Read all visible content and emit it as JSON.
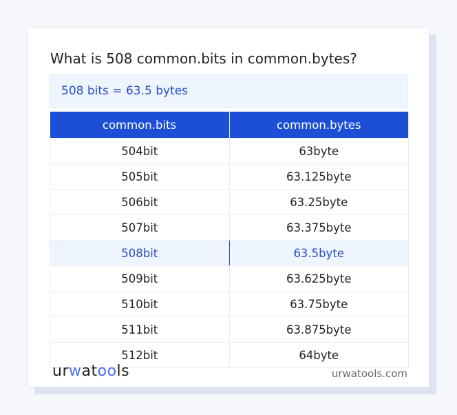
{
  "title": "What is 508 common.bits in common.bytes?",
  "result": "508 bits = 63.5 bytes",
  "table": {
    "headers": [
      "common.bits",
      "common.bytes"
    ],
    "rows": [
      [
        "504bit",
        "63byte"
      ],
      [
        "505bit",
        "63.125byte"
      ],
      [
        "506bit",
        "63.25byte"
      ],
      [
        "507bit",
        "63.375byte"
      ],
      [
        "508bit",
        "63.5byte"
      ],
      [
        "509bit",
        "63.625byte"
      ],
      [
        "510bit",
        "63.75byte"
      ],
      [
        "511bit",
        "63.875byte"
      ],
      [
        "512bit",
        "64byte"
      ]
    ],
    "highlighted_row": 4
  },
  "footer": {
    "logo": "urwatools",
    "logo_parts": [
      "ur",
      "w",
      "at",
      "oo",
      "ls"
    ],
    "site": "urwatools.com"
  },
  "colors": {
    "accent": "#1c4fd6",
    "highlight_bg": "#eef5fe",
    "highlight_text": "#2a4fc4"
  }
}
